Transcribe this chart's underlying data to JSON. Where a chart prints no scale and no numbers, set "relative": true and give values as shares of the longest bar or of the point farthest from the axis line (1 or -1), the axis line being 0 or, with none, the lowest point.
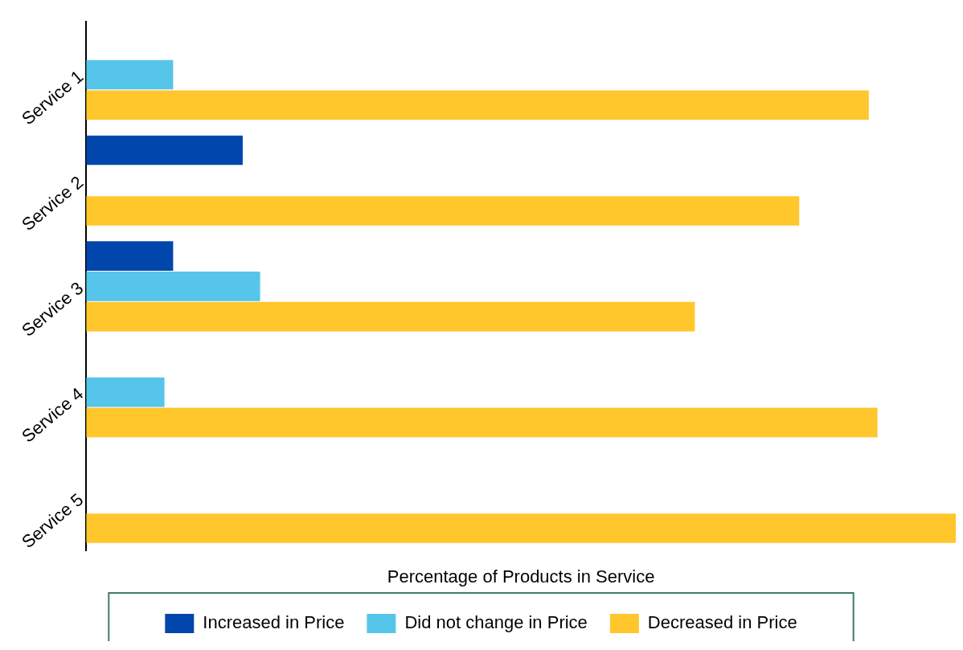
{
  "chart_data": {
    "type": "bar",
    "orientation": "horizontal",
    "relative": true,
    "xlabel": "Percentage of Products in Service",
    "categories": [
      "Service 1",
      "Service 2",
      "Service 3",
      "Service 4",
      "Service 5"
    ],
    "series": [
      {
        "name": "Increased in Price",
        "color": "#0046ad",
        "values": [
          null,
          0.18,
          0.1,
          null,
          null
        ]
      },
      {
        "name": "Did not change in Price",
        "color": "#56c5ea",
        "values": [
          0.1,
          null,
          0.2,
          0.09,
          null
        ]
      },
      {
        "name": "Decreased in Price",
        "color": "#ffc72c",
        "values": [
          0.9,
          0.82,
          0.7,
          0.91,
          1
        ]
      }
    ],
    "grid": false,
    "legend": "bottom"
  }
}
